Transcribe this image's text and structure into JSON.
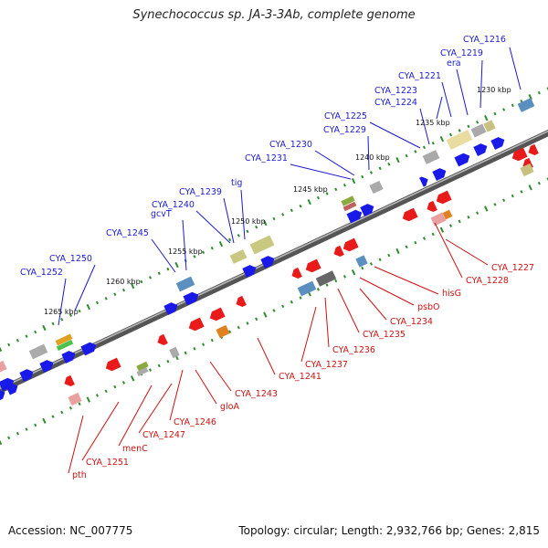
{
  "title": "Synechococcus sp. JA-3-3Ab, complete genome",
  "accession": "Accession: NC_007775",
  "summary": "Topology: circular; Length: 2,932,766 bp; Genes: 2,815",
  "colors": {
    "forward_gene": "#1a1ae8",
    "reverse_gene": "#e81a1a",
    "forward_label": "#1a1acc",
    "reverse_label": "#cc1111",
    "backbone": "#777777",
    "tick": "#2e8b2e"
  },
  "kbp_labels": [
    "1230 kbp",
    "1235 kbp",
    "1240 kbp",
    "1245 kbp",
    "1250 kbp",
    "1255 kbp",
    "1260 kbp",
    "1265 kbp"
  ],
  "forward_labels": [
    "CYA_1216",
    "era",
    "CYA_1219",
    "CYA_1221",
    "CYA_1223",
    "CYA_1224",
    "CYA_1225",
    "CYA_1229",
    "CYA_1230",
    "CYA_1231",
    "tig",
    "CYA_1239",
    "gcvT",
    "CYA_1240",
    "CYA_1245",
    "CYA_1250",
    "CYA_1252"
  ],
  "reverse_labels": [
    "CYA_1227",
    "CYA_1228",
    "hisG",
    "psbO",
    "CYA_1234",
    "CYA_1235",
    "CYA_1236",
    "CYA_1237",
    "CYA_1241",
    "CYA_1243",
    "gloA",
    "CYA_1246",
    "CYA_1247",
    "menC",
    "CYA_1251",
    "pth"
  ]
}
